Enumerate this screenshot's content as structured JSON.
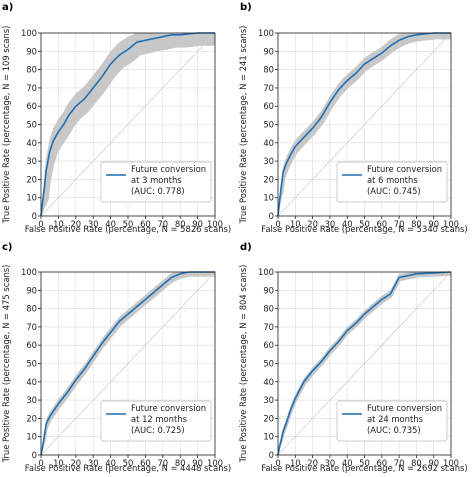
{
  "chart_data": [
    {
      "type": "line",
      "panel_label": "a)",
      "xlabel": "False Positive Rate (percentage, N = 5826 scans)",
      "ylabel": "True Positive Rate (percentage, N = 109 scans)",
      "xlim": [
        0,
        100
      ],
      "ylim": [
        0,
        100
      ],
      "xticks": [
        "0",
        "10",
        "20",
        "30",
        "40",
        "50",
        "60",
        "70",
        "80",
        "90",
        "100"
      ],
      "yticks": [
        "0",
        "10",
        "20",
        "30",
        "40",
        "50",
        "60",
        "70",
        "80",
        "90",
        "100"
      ],
      "grid": true,
      "legend_position": "lower-right",
      "legend": [
        "Future conversion",
        "at 3 months",
        "(AUC: 0.778)"
      ],
      "band_width": 7,
      "series": [
        {
          "x": [
            0,
            1,
            2,
            3,
            5,
            7,
            10,
            13,
            16,
            20,
            25,
            30,
            35,
            40,
            45,
            50,
            55,
            60,
            65,
            70,
            75,
            80,
            90,
            100
          ],
          "y": [
            0,
            8,
            16,
            25,
            35,
            41,
            46,
            50,
            55,
            60,
            64,
            70,
            76,
            83,
            88,
            91,
            95,
            96,
            97,
            98,
            99,
            99,
            100,
            100
          ]
        }
      ]
    },
    {
      "type": "line",
      "panel_label": "b)",
      "xlabel": "False Positive Rate (percentage, N = 5340 scans)",
      "ylabel": "True Positive Rate (percentage, N = 241 scans)",
      "xlim": [
        0,
        100
      ],
      "ylim": [
        0,
        100
      ],
      "xticks": [
        "0",
        "10",
        "20",
        "30",
        "40",
        "50",
        "60",
        "70",
        "80",
        "90",
        "100"
      ],
      "yticks": [
        "0",
        "10",
        "20",
        "30",
        "40",
        "50",
        "60",
        "70",
        "80",
        "90",
        "100"
      ],
      "grid": true,
      "legend_position": "lower-right",
      "legend": [
        "Future conversion",
        "at 6 months",
        "(AUC: 0.745)"
      ],
      "band_width": 3.5,
      "series": [
        {
          "x": [
            0,
            1,
            2,
            3,
            5,
            7,
            10,
            15,
            20,
            25,
            30,
            35,
            40,
            45,
            50,
            55,
            60,
            65,
            70,
            75,
            80,
            90,
            100
          ],
          "y": [
            0,
            9,
            17,
            24,
            29,
            33,
            38,
            43,
            48,
            54,
            62,
            69,
            74,
            78,
            83,
            86,
            89,
            93,
            96,
            98,
            99,
            100,
            100
          ]
        }
      ]
    },
    {
      "type": "line",
      "panel_label": "c)",
      "xlabel": "False Positive Rate (percentage, N = 4448 scans)",
      "ylabel": "True Positive Rate (percentage, N = 475 scans)",
      "xlim": [
        0,
        100
      ],
      "ylim": [
        0,
        100
      ],
      "xticks": [
        "0",
        "10",
        "20",
        "30",
        "40",
        "50",
        "60",
        "70",
        "80",
        "90",
        "100"
      ],
      "yticks": [
        "0",
        "10",
        "20",
        "30",
        "40",
        "50",
        "60",
        "70",
        "80",
        "90",
        "100"
      ],
      "grid": true,
      "legend_position": "lower-right",
      "legend": [
        "Future conversion",
        "at 12 months",
        "(AUC: 0.725)"
      ],
      "band_width": 2.5,
      "series": [
        {
          "x": [
            0,
            1,
            2,
            3,
            5,
            10,
            15,
            20,
            25,
            30,
            35,
            40,
            45,
            50,
            55,
            60,
            65,
            70,
            75,
            80,
            85,
            90,
            100
          ],
          "y": [
            0,
            5,
            11,
            17,
            21,
            28,
            34,
            41,
            47,
            54,
            61,
            67,
            73,
            77,
            81,
            85,
            89,
            93,
            97,
            99,
            100,
            100,
            100
          ]
        }
      ]
    },
    {
      "type": "line",
      "panel_label": "d)",
      "xlabel": "False Positive Rate (percentage, N = 2692 scans)",
      "ylabel": "True Positive Rate (percentage, N = 804 scans)",
      "xlim": [
        0,
        100
      ],
      "ylim": [
        0,
        100
      ],
      "xticks": [
        "0",
        "10",
        "20",
        "30",
        "40",
        "50",
        "60",
        "70",
        "80",
        "90",
        "100"
      ],
      "yticks": [
        "0",
        "10",
        "20",
        "30",
        "40",
        "50",
        "60",
        "70",
        "80",
        "90",
        "100"
      ],
      "grid": true,
      "legend_position": "lower-right",
      "legend": [
        "Future conversion",
        "at 24 months",
        "(AUC: 0.735)"
      ],
      "band_width": 2,
      "series": [
        {
          "x": [
            0,
            1,
            2,
            3,
            5,
            7,
            10,
            15,
            20,
            25,
            30,
            35,
            40,
            45,
            50,
            55,
            60,
            65,
            70,
            80,
            90,
            100
          ],
          "y": [
            0,
            5,
            9,
            13,
            18,
            24,
            31,
            40,
            46,
            51,
            57,
            62,
            68,
            72,
            77,
            81,
            85,
            88,
            97,
            99,
            99.5,
            100
          ]
        }
      ]
    }
  ]
}
